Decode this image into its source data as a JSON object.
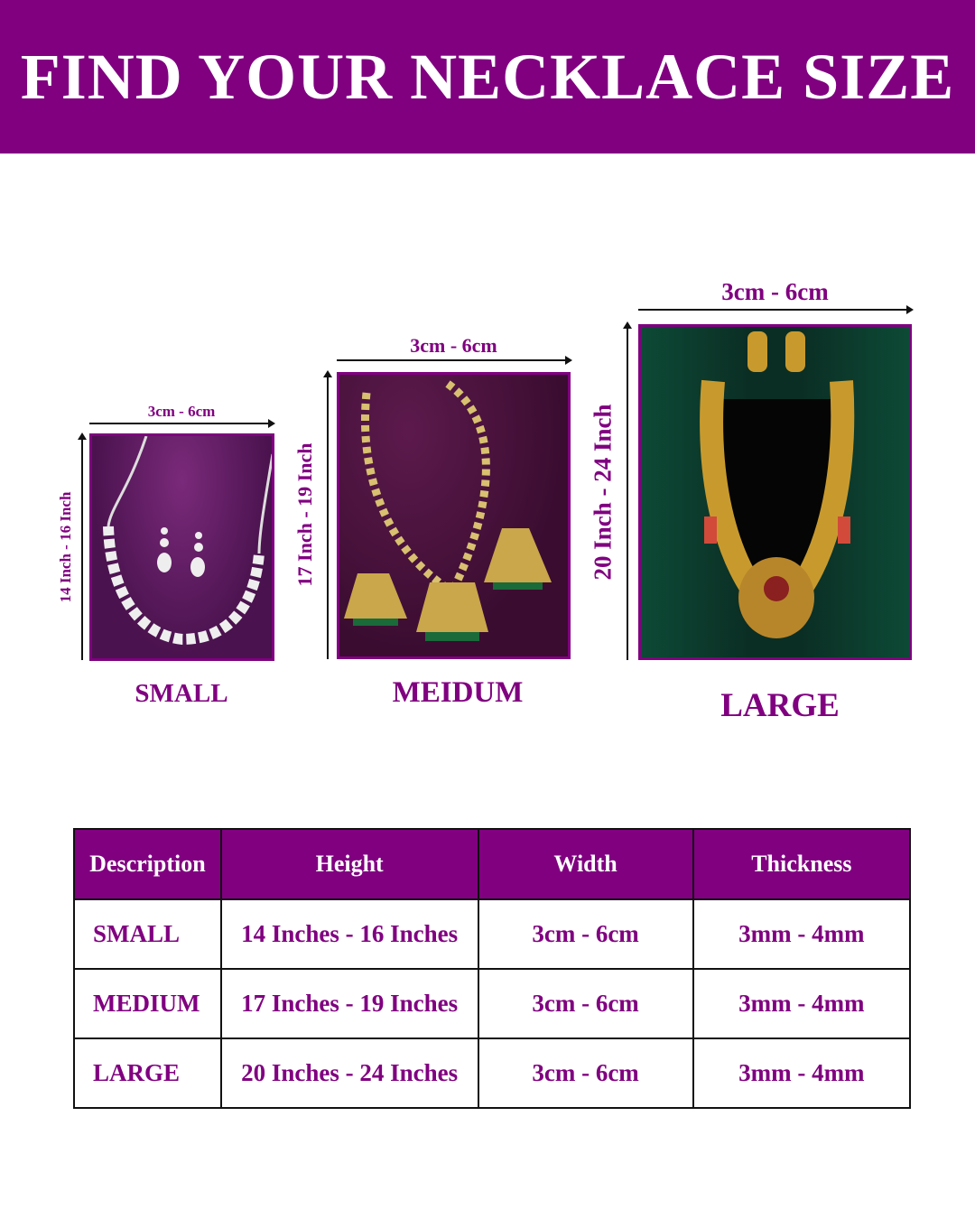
{
  "header": {
    "title": "FIND YOUR NECKLACE SIZE"
  },
  "colors": {
    "brand": "#800080"
  },
  "sizes": [
    {
      "caption": "SMALL",
      "width_label": "3cm - 6cm",
      "height_label": "14 Inch - 16 Inch",
      "image": "silver-necklace-set-photo"
    },
    {
      "caption": "MEIDUM",
      "width_label": "3cm - 6cm",
      "height_label": "17 Inch - 19 Inch",
      "image": "gold-pendant-necklace-set-photo"
    },
    {
      "caption": "LARGE",
      "width_label": "3cm - 6cm",
      "height_label": "20 Inch - 24 Inch",
      "image": "gold-temple-long-necklace-set-photo"
    }
  ],
  "table": {
    "headers": [
      "Description",
      "Height",
      "Width",
      "Thickness"
    ],
    "rows": [
      [
        "SMALL",
        "14 Inches - 16 Inches",
        "3cm - 6cm",
        "3mm - 4mm"
      ],
      [
        "MEDIUM",
        "17 Inches - 19 Inches",
        "3cm - 6cm",
        "3mm - 4mm"
      ],
      [
        "LARGE",
        "20 Inches - 24 Inches",
        "3cm - 6cm",
        "3mm - 4mm"
      ]
    ]
  }
}
